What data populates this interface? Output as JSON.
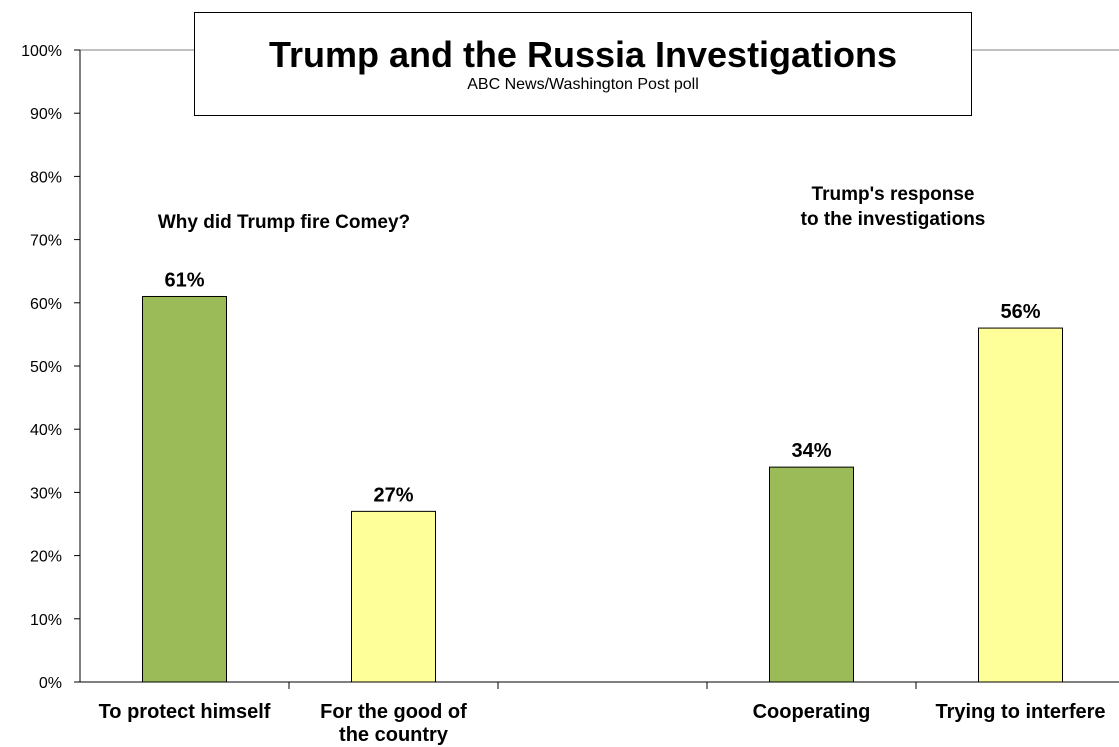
{
  "chart_data": {
    "type": "bar",
    "title": "Trump and the Russia Investigations",
    "subtitle": "ABC News/Washington  Post poll",
    "ylim": [
      0,
      100
    ],
    "y_ticks": [
      "0%",
      "10%",
      "20%",
      "30%",
      "40%",
      "50%",
      "60%",
      "70%",
      "80%",
      "90%",
      "100%"
    ],
    "grid": false,
    "groups": [
      {
        "label": "Why did Trump fire Comey?",
        "label_lines": [
          "Why did Trump fire Comey?"
        ],
        "bars": [
          {
            "category": "To protect himself",
            "category_lines": [
              "To protect himself"
            ],
            "value": 61,
            "label": "61%",
            "color": "#9BBB59"
          },
          {
            "category": "For the good of the country",
            "category_lines": [
              "For the good of",
              "the country"
            ],
            "value": 27,
            "label": "27%",
            "color": "#FFFF99"
          }
        ]
      },
      {
        "label": "Trump's response to the investigations",
        "label_lines": [
          "Trump's response",
          "to the investigations"
        ],
        "bars": [
          {
            "category": "Cooperating",
            "category_lines": [
              "Cooperating"
            ],
            "value": 34,
            "label": "34%",
            "color": "#9BBB59"
          },
          {
            "category": "Trying to interfere",
            "category_lines": [
              "Trying to interfere"
            ],
            "value": 56,
            "label": "56%",
            "color": "#FFFF99"
          }
        ]
      }
    ]
  }
}
